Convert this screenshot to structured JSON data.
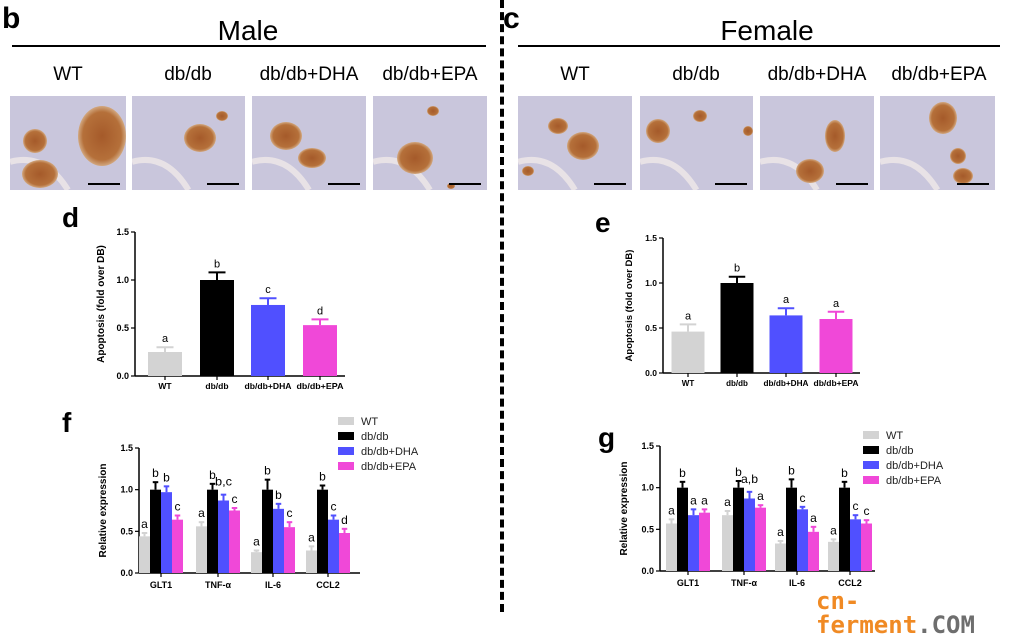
{
  "figure": {
    "panels": {
      "b": {
        "letter": "b",
        "title": "Male",
        "groups": [
          "WT",
          "db/db",
          "db/db+DHA",
          "db/db+EPA"
        ]
      },
      "c": {
        "letter": "c",
        "title": "Female",
        "groups": [
          "WT",
          "db/db",
          "db/db+DHA",
          "db/db+EPA"
        ]
      }
    },
    "watermark": {
      "part1": "cn-ferment",
      "part2": ".COM"
    },
    "colors": {
      "WT": "#d3d3d3",
      "db/db": "#000000",
      "db/db+DHA": "#5050ff",
      "db/db+EPA": "#f048d8",
      "stain": "#b5703a",
      "tissue": "#c9c6dc"
    }
  },
  "chart_data": [
    {
      "id": "d",
      "letter": "d",
      "type": "bar",
      "categories": [
        "WT",
        "db/db",
        "db/db+DHA",
        "db/db+EPA"
      ],
      "values": [
        0.25,
        1.0,
        0.74,
        0.53
      ],
      "errors": [
        0.05,
        0.08,
        0.07,
        0.06
      ],
      "letters": [
        "a",
        "b",
        "c",
        "d"
      ],
      "ylabel": "Apoptosis (fold over DB)",
      "ylim": [
        0,
        1.5
      ],
      "yticks": [
        "0.0",
        "0.5",
        "1.0",
        "1.5"
      ]
    },
    {
      "id": "e",
      "letter": "e",
      "type": "bar",
      "categories": [
        "WT",
        "db/db",
        "db/db+DHA",
        "db/db+EPA"
      ],
      "values": [
        0.46,
        1.0,
        0.64,
        0.6
      ],
      "errors": [
        0.08,
        0.07,
        0.08,
        0.08
      ],
      "letters": [
        "a",
        "b",
        "a",
        "a"
      ],
      "ylabel": "Apoptosis (fold over DB)",
      "ylim": [
        0,
        1.5
      ],
      "yticks": [
        "0.0",
        "0.5",
        "1.0",
        "1.5"
      ]
    },
    {
      "id": "f",
      "letter": "f",
      "type": "bar",
      "categories": [
        "GLT1",
        "TNF-α",
        "IL-6",
        "CCL2"
      ],
      "series": [
        {
          "name": "WT",
          "values": [
            0.44,
            0.56,
            0.25,
            0.27
          ],
          "errors": [
            0.04,
            0.05,
            0.02,
            0.05
          ],
          "letters": [
            "a",
            "a",
            "a",
            "a"
          ]
        },
        {
          "name": "db/db",
          "values": [
            1.0,
            1.0,
            1.0,
            1.0
          ],
          "errors": [
            0.09,
            0.07,
            0.12,
            0.05
          ],
          "letters": [
            "b",
            "b",
            "b",
            "b"
          ]
        },
        {
          "name": "db/db+DHA",
          "values": [
            0.97,
            0.87,
            0.77,
            0.64
          ],
          "errors": [
            0.07,
            0.07,
            0.06,
            0.05
          ],
          "letters": [
            "b",
            "b,c",
            "b",
            "c"
          ]
        },
        {
          "name": "db/db+EPA",
          "values": [
            0.64,
            0.75,
            0.55,
            0.48
          ],
          "errors": [
            0.05,
            0.03,
            0.06,
            0.05
          ],
          "letters": [
            "c",
            "c",
            "c",
            "d"
          ]
        }
      ],
      "ylabel": "Relative expression",
      "ylim": [
        0,
        1.5
      ],
      "yticks": [
        "0.0",
        "0.5",
        "1.0",
        "1.5"
      ],
      "legend": "top-right"
    },
    {
      "id": "g",
      "letter": "g",
      "type": "bar",
      "categories": [
        "GLT1",
        "TNF-α",
        "IL-6",
        "CCL2"
      ],
      "series": [
        {
          "name": "WT",
          "values": [
            0.57,
            0.67,
            0.33,
            0.35
          ],
          "errors": [
            0.05,
            0.05,
            0.03,
            0.03
          ],
          "letters": [
            "a",
            "a",
            "a",
            "a"
          ]
        },
        {
          "name": "db/db",
          "values": [
            1.0,
            1.0,
            1.0,
            1.0
          ],
          "errors": [
            0.07,
            0.08,
            0.1,
            0.07
          ],
          "letters": [
            "b",
            "b",
            "b",
            "b"
          ]
        },
        {
          "name": "db/db+DHA",
          "values": [
            0.67,
            0.87,
            0.74,
            0.62
          ],
          "errors": [
            0.07,
            0.08,
            0.03,
            0.05
          ],
          "letters": [
            "a",
            "a,b",
            "c",
            "c"
          ]
        },
        {
          "name": "db/db+EPA",
          "values": [
            0.7,
            0.76,
            0.47,
            0.57
          ],
          "errors": [
            0.04,
            0.03,
            0.06,
            0.04
          ],
          "letters": [
            "a",
            "a",
            "a",
            "c"
          ]
        }
      ],
      "ylabel": "Relative expression",
      "ylim": [
        0,
        1.5
      ],
      "yticks": [
        "0.0",
        "0.5",
        "1.0",
        "1.5"
      ],
      "legend": "top-right"
    }
  ]
}
